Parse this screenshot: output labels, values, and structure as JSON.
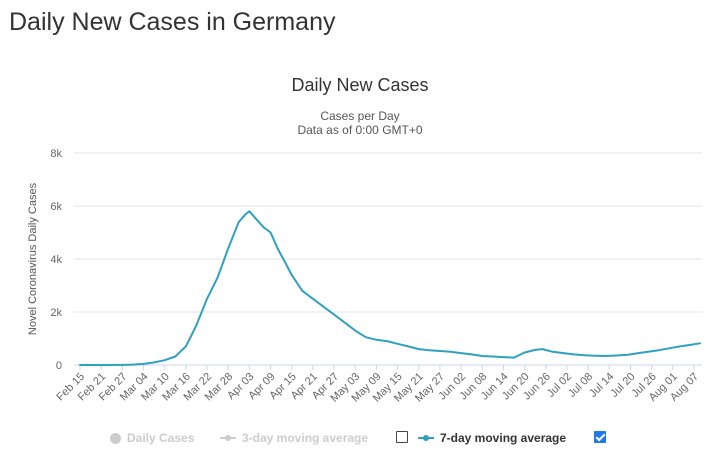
{
  "page": {
    "heading": "Daily New Cases in Germany"
  },
  "chart_data": {
    "type": "line",
    "title": "Daily New Cases",
    "subtitle_lines": [
      "Cases per Day",
      "Data as of 0:00 GMT+0"
    ],
    "ylabel": "Novel Coronavirus Daily Cases",
    "xlabel": "",
    "ylim": [
      0,
      8000
    ],
    "yticks": [
      0,
      2000,
      4000,
      6000,
      8000
    ],
    "ytick_labels": [
      "0",
      "2k",
      "4k",
      "6k",
      "8k"
    ],
    "grid": true,
    "x_tick_labels": [
      "Feb 15",
      "Feb 21",
      "Feb 27",
      "Mar 04",
      "Mar 10",
      "Mar 16",
      "Mar 22",
      "Mar 28",
      "Apr 03",
      "Apr 09",
      "Apr 15",
      "Apr 21",
      "Apr 27",
      "May 03",
      "May 09",
      "May 15",
      "May 21",
      "May 27",
      "Jun 02",
      "Jun 08",
      "Jun 14",
      "Jun 20",
      "Jun 26",
      "Jul 02",
      "Jul 08",
      "Jul 14",
      "Jul 20",
      "Jul 26",
      "Aug 01",
      "Aug 07"
    ],
    "series": [
      {
        "name": "7-day moving average",
        "color": "#2fa1bf",
        "x": [
          "Feb 15",
          "Feb 21",
          "Feb 27",
          "Mar 01",
          "Mar 04",
          "Mar 07",
          "Mar 10",
          "Mar 13",
          "Mar 16",
          "Mar 19",
          "Mar 22",
          "Mar 25",
          "Mar 28",
          "Mar 31",
          "Apr 02",
          "Apr 03",
          "Apr 05",
          "Apr 07",
          "Apr 09",
          "Apr 11",
          "Apr 13",
          "Apr 15",
          "Apr 18",
          "Apr 21",
          "Apr 24",
          "Apr 27",
          "Apr 30",
          "May 03",
          "May 06",
          "May 09",
          "May 12",
          "May 15",
          "May 18",
          "May 21",
          "May 24",
          "May 27",
          "May 30",
          "Jun 02",
          "Jun 05",
          "Jun 08",
          "Jun 11",
          "Jun 14",
          "Jun 17",
          "Jun 20",
          "Jun 23",
          "Jun 25",
          "Jun 28",
          "Jul 01",
          "Jul 04",
          "Jul 07",
          "Jul 10",
          "Jul 13",
          "Jul 16",
          "Jul 19",
          "Jul 22",
          "Jul 25",
          "Jul 28",
          "Jul 31",
          "Aug 03",
          "Aug 06",
          "Aug 09"
        ],
        "values": [
          0,
          0,
          5,
          15,
          40,
          100,
          180,
          320,
          700,
          1500,
          2500,
          3300,
          4400,
          5400,
          5700,
          5800,
          5500,
          5200,
          5000,
          4400,
          3900,
          3400,
          2800,
          2500,
          2200,
          1900,
          1600,
          1300,
          1050,
          950,
          900,
          800,
          700,
          600,
          560,
          530,
          500,
          450,
          400,
          340,
          320,
          300,
          280,
          470,
          570,
          600,
          500,
          450,
          400,
          370,
          350,
          340,
          360,
          380,
          440,
          500,
          560,
          630,
          700,
          760,
          820
        ]
      }
    ],
    "legend": {
      "placement": "bottom",
      "items": [
        {
          "name": "Daily Cases",
          "state": "hidden",
          "color": "#cccccc"
        },
        {
          "name": "3-day moving average",
          "state": "hidden",
          "color": "#cccccc"
        },
        {
          "name": "7-day moving average",
          "state": "visible",
          "color": "#2fa1bf"
        }
      ]
    }
  }
}
